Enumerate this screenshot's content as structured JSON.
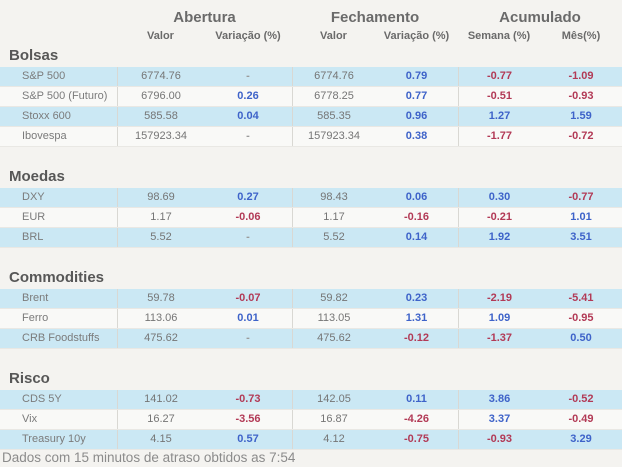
{
  "palette": {
    "positive": "#3e63c9",
    "negative": "#b23a56",
    "row_highlight": "#cbe8f4",
    "row_plain": "#f9f9f7",
    "page_background": "#f4f3f0"
  },
  "header": {
    "groups": [
      {
        "label": "Abertura",
        "sub": [
          "Valor",
          "Variação (%)"
        ]
      },
      {
        "label": "Fechamento",
        "sub": [
          "Valor",
          "Variação (%)"
        ]
      },
      {
        "label": "Acumulado",
        "sub": [
          "Semana (%)",
          "Mês(%)"
        ]
      }
    ]
  },
  "sections": [
    {
      "title": "Bolsas",
      "rows": [
        {
          "label": "S&P 500",
          "values": [
            "6774.76",
            "-",
            "6774.76",
            "0.79",
            "-0.77",
            "-1.09"
          ],
          "colors": [
            "plain",
            "dash",
            "plain",
            "blue",
            "red",
            "red"
          ]
        },
        {
          "label": "S&P 500 (Futuro)",
          "values": [
            "6796.00",
            "0.26",
            "6778.25",
            "0.77",
            "-0.51",
            "-0.93"
          ],
          "colors": [
            "plain",
            "blue",
            "plain",
            "blue",
            "red",
            "red"
          ]
        },
        {
          "label": "Stoxx 600",
          "values": [
            "585.58",
            "0.04",
            "585.35",
            "0.96",
            "1.27",
            "1.59"
          ],
          "colors": [
            "plain",
            "blue",
            "plain",
            "blue",
            "blue",
            "blue"
          ]
        },
        {
          "label": "Ibovespa",
          "values": [
            "157923.34",
            "-",
            "157923.34",
            "0.38",
            "-1.77",
            "-0.72"
          ],
          "colors": [
            "plain",
            "dash",
            "plain",
            "blue",
            "red",
            "red"
          ]
        }
      ]
    },
    {
      "title": "Moedas",
      "rows": [
        {
          "label": "DXY",
          "values": [
            "98.69",
            "0.27",
            "98.43",
            "0.06",
            "0.30",
            "-0.77"
          ],
          "colors": [
            "plain",
            "blue",
            "plain",
            "blue",
            "blue",
            "red"
          ]
        },
        {
          "label": "EUR",
          "values": [
            "1.17",
            "-0.06",
            "1.17",
            "-0.16",
            "-0.21",
            "1.01"
          ],
          "colors": [
            "plain",
            "red",
            "plain",
            "red",
            "red",
            "blue"
          ]
        },
        {
          "label": "BRL",
          "values": [
            "5.52",
            "-",
            "5.52",
            "0.14",
            "1.92",
            "3.51"
          ],
          "colors": [
            "plain",
            "dash",
            "plain",
            "blue",
            "blue",
            "blue"
          ]
        }
      ]
    },
    {
      "title": "Commodities",
      "rows": [
        {
          "label": "Brent",
          "values": [
            "59.78",
            "-0.07",
            "59.82",
            "0.23",
            "-2.19",
            "-5.41"
          ],
          "colors": [
            "plain",
            "red",
            "plain",
            "blue",
            "red",
            "red"
          ]
        },
        {
          "label": "Ferro",
          "values": [
            "113.06",
            "0.01",
            "113.05",
            "1.31",
            "1.09",
            "-0.95"
          ],
          "colors": [
            "plain",
            "blue",
            "plain",
            "blue",
            "blue",
            "red"
          ]
        },
        {
          "label": "CRB Foodstuffs",
          "values": [
            "475.62",
            "-",
            "475.62",
            "-0.12",
            "-1.37",
            "0.50"
          ],
          "colors": [
            "plain",
            "dash",
            "plain",
            "red",
            "red",
            "blue"
          ]
        }
      ]
    },
    {
      "title": "Risco",
      "rows": [
        {
          "label": "CDS 5Y",
          "values": [
            "141.02",
            "-0.73",
            "142.05",
            "0.11",
            "3.86",
            "-0.52"
          ],
          "colors": [
            "plain",
            "red",
            "plain",
            "blue",
            "blue",
            "red"
          ]
        },
        {
          "label": "Vix",
          "values": [
            "16.27",
            "-3.56",
            "16.87",
            "-4.26",
            "3.37",
            "-0.49"
          ],
          "colors": [
            "plain",
            "red",
            "plain",
            "red",
            "blue",
            "red"
          ]
        },
        {
          "label": "Treasury 10y",
          "values": [
            "4.15",
            "0.57",
            "4.12",
            "-0.75",
            "-0.93",
            "3.29"
          ],
          "colors": [
            "plain",
            "blue",
            "plain",
            "red",
            "red",
            "blue"
          ]
        }
      ]
    }
  ],
  "footer": "Dados com 15 minutos de atraso obtidos as 7:54"
}
